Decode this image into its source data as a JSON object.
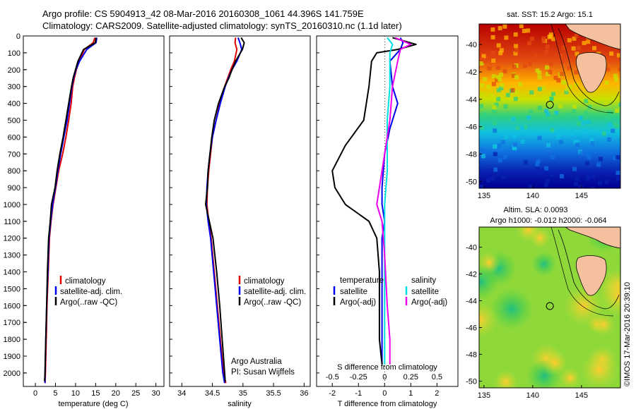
{
  "header": {
    "line1": "Argo profile: CS 5904913_42 08-Mar-2016 20160308_1061 44.396S 141.759E",
    "line2": "Climatology: CARS2009. Satellite-adjusted climatology: synTS_20160310.nc (1.1d later)"
  },
  "colors": {
    "climatology": "#e00000",
    "satellite": "#0000ee",
    "argo": "#000000",
    "sat_salinity": "#00e0e0",
    "argo_adj_salinity": "#ee00ee"
  },
  "chart_data": [
    {
      "type": "line",
      "id": "temperature",
      "xlabel": "temperature (deg C)",
      "ylabel": "",
      "xlim": [
        -3,
        32
      ],
      "ylim": [
        2080,
        0
      ],
      "xticks": [
        0,
        5,
        10,
        15,
        20,
        25,
        30
      ],
      "yticks": [
        0,
        100,
        200,
        300,
        400,
        500,
        600,
        700,
        800,
        900,
        1000,
        1100,
        1200,
        1300,
        1400,
        1500,
        1600,
        1700,
        1800,
        1900,
        2000
      ],
      "legend": [
        "climatology",
        "satellite-adj. clim.",
        "Argo(..raw -QC)"
      ],
      "series": [
        {
          "name": "climatology",
          "color": "#e00000",
          "points": [
            [
              14.8,
              10
            ],
            [
              14.4,
              40
            ],
            [
              12.2,
              80
            ],
            [
              10.9,
              150
            ],
            [
              10.2,
              200
            ],
            [
              9.7,
              250
            ],
            [
              9.3,
              300
            ],
            [
              8.9,
              400
            ],
            [
              8.3,
              500
            ],
            [
              7.6,
              600
            ],
            [
              6.8,
              700
            ],
            [
              5.8,
              800
            ],
            [
              5.1,
              900
            ],
            [
              4.4,
              1000
            ],
            [
              3.9,
              1100
            ],
            [
              3.5,
              1200
            ],
            [
              3.2,
              1400
            ],
            [
              2.9,
              1600
            ],
            [
              2.7,
              1800
            ],
            [
              2.5,
              2000
            ],
            [
              2.4,
              2060
            ]
          ]
        },
        {
          "name": "satellite-adj. clim.",
          "color": "#0000ee",
          "points": [
            [
              15.3,
              10
            ],
            [
              15.1,
              40
            ],
            [
              12.8,
              80
            ],
            [
              11.0,
              150
            ],
            [
              10.1,
              200
            ],
            [
              9.5,
              250
            ],
            [
              9.1,
              300
            ],
            [
              8.5,
              400
            ],
            [
              7.9,
              500
            ],
            [
              7.1,
              600
            ],
            [
              6.3,
              700
            ],
            [
              5.6,
              800
            ],
            [
              5.0,
              900
            ],
            [
              4.3,
              1000
            ],
            [
              3.8,
              1100
            ],
            [
              3.4,
              1200
            ],
            [
              3.1,
              1400
            ],
            [
              2.8,
              1600
            ],
            [
              2.6,
              1800
            ],
            [
              2.4,
              2000
            ],
            [
              2.4,
              2060
            ]
          ]
        },
        {
          "name": "Argo(..raw -QC)",
          "color": "#000000",
          "points": [
            [
              15.1,
              10
            ],
            [
              14.9,
              40
            ],
            [
              12.0,
              80
            ],
            [
              10.6,
              150
            ],
            [
              10.0,
              200
            ],
            [
              9.4,
              250
            ],
            [
              9.0,
              300
            ],
            [
              8.3,
              400
            ],
            [
              7.6,
              500
            ],
            [
              6.9,
              600
            ],
            [
              6.1,
              700
            ],
            [
              5.4,
              800
            ],
            [
              4.9,
              900
            ],
            [
              4.0,
              1000
            ],
            [
              3.7,
              1100
            ],
            [
              3.3,
              1200
            ],
            [
              3.0,
              1400
            ],
            [
              2.8,
              1600
            ],
            [
              2.6,
              1800
            ],
            [
              2.4,
              2000
            ],
            [
              2.3,
              2050
            ]
          ]
        }
      ]
    },
    {
      "type": "line",
      "id": "salinity",
      "xlabel": "salinity",
      "ylabel": "",
      "xlim": [
        33.8,
        36.1
      ],
      "ylim": [
        2080,
        0
      ],
      "xticks": [
        34,
        34.5,
        35,
        35.5,
        36
      ],
      "legend": [
        "climatology",
        "satellite-adj. clim.",
        "Argo(..raw -QC)"
      ],
      "annotation": [
        "Argo Australia",
        "PI: Susan Wijffels"
      ],
      "series": [
        {
          "name": "climatology",
          "color": "#e00000",
          "points": [
            [
              34.88,
              10
            ],
            [
              34.87,
              40
            ],
            [
              34.9,
              80
            ],
            [
              34.86,
              150
            ],
            [
              34.8,
              200
            ],
            [
              34.75,
              250
            ],
            [
              34.7,
              300
            ],
            [
              34.62,
              400
            ],
            [
              34.56,
              500
            ],
            [
              34.5,
              600
            ],
            [
              34.47,
              700
            ],
            [
              34.44,
              800
            ],
            [
              34.42,
              900
            ],
            [
              34.41,
              1000
            ],
            [
              34.44,
              1100
            ],
            [
              34.48,
              1200
            ],
            [
              34.53,
              1400
            ],
            [
              34.58,
              1600
            ],
            [
              34.63,
              1800
            ],
            [
              34.68,
              2000
            ],
            [
              34.72,
              2060
            ]
          ]
        },
        {
          "name": "satellite-adj. clim.",
          "color": "#0000ee",
          "points": [
            [
              34.92,
              10
            ],
            [
              34.95,
              40
            ],
            [
              34.98,
              80
            ],
            [
              34.9,
              150
            ],
            [
              34.82,
              200
            ],
            [
              34.76,
              250
            ],
            [
              34.71,
              300
            ],
            [
              34.63,
              400
            ],
            [
              34.56,
              500
            ],
            [
              34.5,
              600
            ],
            [
              34.46,
              700
            ],
            [
              34.43,
              800
            ],
            [
              34.41,
              900
            ],
            [
              34.4,
              1000
            ],
            [
              34.43,
              1100
            ],
            [
              34.47,
              1200
            ],
            [
              34.52,
              1400
            ],
            [
              34.57,
              1600
            ],
            [
              34.62,
              1800
            ],
            [
              34.67,
              2000
            ],
            [
              34.7,
              2060
            ]
          ]
        },
        {
          "name": "Argo(..raw -QC)",
          "color": "#000000",
          "points": [
            [
              34.97,
              10
            ],
            [
              35.02,
              40
            ],
            [
              34.99,
              80
            ],
            [
              34.88,
              150
            ],
            [
              34.82,
              200
            ],
            [
              34.77,
              250
            ],
            [
              34.7,
              300
            ],
            [
              34.6,
              400
            ],
            [
              34.53,
              500
            ],
            [
              34.49,
              600
            ],
            [
              34.46,
              700
            ],
            [
              34.43,
              800
            ],
            [
              34.42,
              900
            ],
            [
              34.39,
              1000
            ],
            [
              34.45,
              1100
            ],
            [
              34.51,
              1200
            ],
            [
              34.57,
              1400
            ],
            [
              34.62,
              1600
            ],
            [
              34.66,
              1800
            ],
            [
              34.7,
              2000
            ],
            [
              34.71,
              2050
            ]
          ]
        }
      ]
    },
    {
      "type": "line",
      "id": "difference",
      "xlabel": "T difference from climatology",
      "xlabel2": "S difference from climatology",
      "xlim": [
        -2.6,
        2.8
      ],
      "ylim": [
        2080,
        0
      ],
      "xticks": [
        -2,
        -1,
        0,
        1,
        2
      ],
      "xticks2": [
        {
          "v": -0.5,
          "l": "-0.5"
        },
        {
          "v": -0.25,
          "l": "-0.25"
        },
        {
          "v": 0,
          "l": "0"
        },
        {
          "v": 0.25,
          "l": "0.25"
        },
        {
          "v": 0.5,
          "l": "0.5"
        }
      ],
      "legend_groups": [
        {
          "title": "temperature",
          "items": [
            "satellite",
            "Argo(-adj)"
          ]
        },
        {
          "title": "salinity",
          "items": [
            "satellite",
            "Argo(-adj)"
          ]
        }
      ],
      "series": [
        {
          "name": "satellite (temperature)",
          "color": "#0000ee",
          "points": [
            [
              0.6,
              10
            ],
            [
              0.7,
              40
            ],
            [
              0.6,
              80
            ],
            [
              0.2,
              150
            ],
            [
              0.3,
              300
            ],
            [
              0.5,
              400
            ],
            [
              0.2,
              550
            ],
            [
              0.0,
              700
            ],
            [
              -0.1,
              900
            ],
            [
              -0.1,
              1000
            ],
            [
              0.0,
              1100
            ],
            [
              -0.1,
              1200
            ],
            [
              -0.1,
              1400
            ],
            [
              -0.1,
              1600
            ],
            [
              -0.1,
              1800
            ],
            [
              -0.1,
              1950
            ]
          ]
        },
        {
          "name": "Argo(-adj) (temperature)",
          "color": "#000000",
          "points": [
            [
              0.3,
              10
            ],
            [
              1.2,
              50
            ],
            [
              0.5,
              80
            ],
            [
              -0.3,
              100
            ],
            [
              -0.5,
              150
            ],
            [
              -0.6,
              300
            ],
            [
              -0.8,
              500
            ],
            [
              -1.5,
              650
            ],
            [
              -2.0,
              800
            ],
            [
              -1.9,
              900
            ],
            [
              -1.5,
              1000
            ],
            [
              -0.6,
              1100
            ],
            [
              -0.3,
              1200
            ],
            [
              -0.2,
              1400
            ],
            [
              -0.2,
              1600
            ],
            [
              -0.2,
              1800
            ],
            [
              -0.1,
              1950
            ]
          ]
        },
        {
          "name": "satellite (salinity)",
          "color": "#00e0e0",
          "points": [
            [
              0.1,
              10
            ],
            [
              0.3,
              50
            ],
            [
              0.2,
              100
            ],
            [
              0.2,
              300
            ],
            [
              0.1,
              500
            ],
            [
              0.1,
              800
            ],
            [
              0.0,
              1000
            ],
            [
              0.0,
              1400
            ],
            [
              0.0,
              1700
            ],
            [
              0.0,
              1950
            ]
          ]
        },
        {
          "name": "Argo(-adj) (salinity)",
          "color": "#ee00ee",
          "points": [
            [
              0.4,
              10
            ],
            [
              1.0,
              50
            ],
            [
              0.6,
              80
            ],
            [
              0.5,
              150
            ],
            [
              0.3,
              300
            ],
            [
              0.2,
              500
            ],
            [
              0.0,
              700
            ],
            [
              -0.2,
              900
            ],
            [
              -0.3,
              1000
            ],
            [
              -0.1,
              1100
            ],
            [
              0.0,
              1300
            ],
            [
              0.1,
              1600
            ],
            [
              0.2,
              1800
            ],
            [
              0.2,
              1950
            ]
          ]
        }
      ]
    },
    {
      "type": "heatmap",
      "id": "sst_map",
      "title": "sat. SST: 15.2 Argo: 15.1",
      "xlim": [
        134.5,
        149
      ],
      "ylim": [
        -50.5,
        -38.5
      ],
      "xticks": [
        135,
        140,
        145
      ],
      "yticks": [
        -40,
        -42,
        -44,
        -46,
        -48,
        -50
      ],
      "marker": {
        "lon": 141.759,
        "lat": -44.396
      }
    },
    {
      "type": "heatmap",
      "id": "sla_map",
      "title": "Altim. SLA: 0.0093",
      "subtitle": "Argo h1000: -0.012 h2000: -0.064",
      "xlim": [
        134.5,
        149
      ],
      "ylim": [
        -50.5,
        -38.5
      ],
      "xticks": [
        135,
        140,
        145
      ],
      "yticks": [
        -40,
        -42,
        -44,
        -46,
        -48,
        -50
      ],
      "marker": {
        "lon": 141.759,
        "lat": -44.396
      }
    }
  ],
  "stamp": "©IMOS 17-Mar-2016 20:39:10"
}
